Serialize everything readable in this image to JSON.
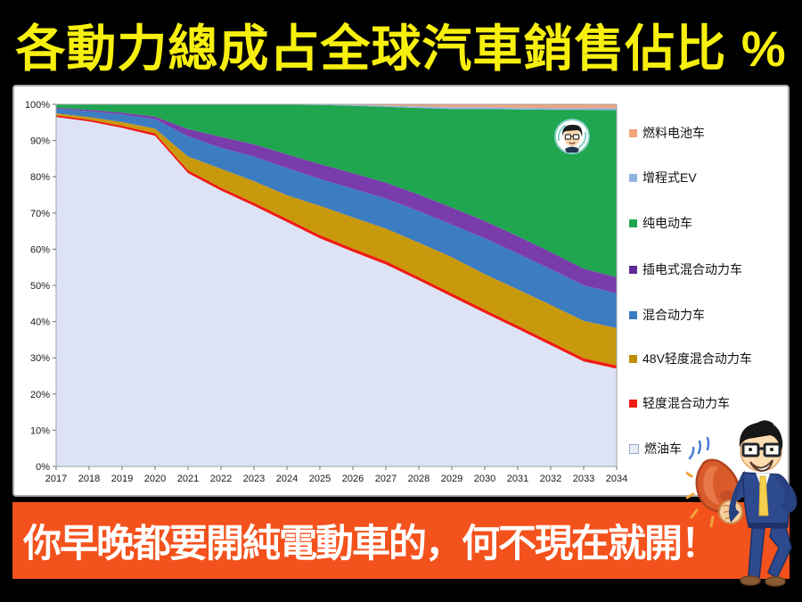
{
  "title": {
    "text": "各動力總成占全球汽車銷售佔比 %"
  },
  "banner": {
    "text": "你早晚都要開純電動車的，何不現在就開！"
  },
  "colors": {
    "page_background": "#000000",
    "title_color": "#F7EF0E",
    "panel_background": "#FFFFFF",
    "banner_background": "#F4521C",
    "highlight_box": "#17A44B"
  },
  "legend": {
    "highlighted_item": "纯电动车",
    "items": [
      {
        "label": "燃料电池车",
        "color": "#F2A57F"
      },
      {
        "label": "增程式EV",
        "color": "#8FB4DE"
      },
      {
        "label": "纯电动车",
        "color": "#1FA64F"
      },
      {
        "label": "插电式混合动力车",
        "color": "#5C2D91"
      },
      {
        "label": "混合动力车",
        "color": "#3C7CC1"
      },
      {
        "label": "48V轻度混合动力车",
        "color": "#BF9000"
      },
      {
        "label": "轻度混合动力车",
        "color": "#EE1C12"
      },
      {
        "label": "燃油车",
        "color": "#E9EDF8",
        "border": "#9AA7C7"
      }
    ]
  },
  "chart_data": {
    "type": "area",
    "stacked": true,
    "stack_order": "bottom-to-top",
    "unit": "%",
    "grid": false,
    "legend_position": "right",
    "x": [
      2017,
      2018,
      2019,
      2020,
      2021,
      2022,
      2023,
      2024,
      2025,
      2026,
      2027,
      2028,
      2029,
      2030,
      2031,
      2032,
      2033,
      2034
    ],
    "ylim": [
      0,
      100
    ],
    "ytick_step": 10,
    "series": [
      {
        "name": "燃油车",
        "key": "ice",
        "color": "#DDE3F4",
        "values": [
          96.5,
          95.3,
          93.5,
          91.3,
          81.0,
          76.2,
          72.0,
          67.5,
          63.0,
          59.3,
          55.8,
          51.4,
          46.9,
          42.4,
          38.0,
          33.5,
          29.0,
          27.0
        ]
      },
      {
        "name": "轻度混合动力车",
        "key": "mild-hybrid",
        "color": "#EE1C12",
        "values": [
          0.5,
          0.5,
          0.6,
          0.7,
          0.8,
          0.8,
          0.8,
          0.9,
          0.9,
          0.9,
          0.9,
          0.9,
          0.9,
          0.9,
          0.9,
          0.9,
          0.9,
          0.9
        ]
      },
      {
        "name": "48V轻度混合动力车",
        "key": "mild-hybrid-48v",
        "color": "#C9990D",
        "values": [
          0.5,
          0.7,
          1.0,
          1.3,
          3.8,
          5.2,
          6.0,
          6.5,
          8.1,
          8.6,
          9.0,
          9.5,
          10.0,
          9.8,
          10.0,
          10.2,
          10.3,
          10.3
        ]
      },
      {
        "name": "混合动力车",
        "key": "hybrid",
        "color": "#3C7CC1",
        "values": [
          1.3,
          1.6,
          2.1,
          2.6,
          5.6,
          5.8,
          6.8,
          7.5,
          7.4,
          7.9,
          8.3,
          8.7,
          9.0,
          9.9,
          9.9,
          9.9,
          9.8,
          9.6
        ]
      },
      {
        "name": "插电式混合动力车",
        "key": "phev",
        "color": "#7A3CAB",
        "values": [
          0.3,
          0.4,
          0.5,
          0.7,
          2.0,
          3.0,
          3.4,
          3.8,
          4.1,
          4.3,
          4.4,
          4.6,
          4.7,
          4.8,
          4.8,
          4.7,
          4.6,
          4.5
        ]
      },
      {
        "name": "纯电动车",
        "key": "bev",
        "color": "#1FA64F",
        "values": [
          0.8,
          1.4,
          2.2,
          3.3,
          6.7,
          8.9,
          10.9,
          13.7,
          16.3,
          18.6,
          20.9,
          23.9,
          27.2,
          30.9,
          35.0,
          39.3,
          43.9,
          46.1
        ]
      },
      {
        "name": "增程式EV",
        "key": "erev",
        "color": "#8FB4DE",
        "values": [
          0.05,
          0.05,
          0.05,
          0.05,
          0.05,
          0.05,
          0.05,
          0.05,
          0.1,
          0.2,
          0.3,
          0.4,
          0.5,
          0.5,
          0.5,
          0.5,
          0.5,
          0.6
        ]
      },
      {
        "name": "燃料电池车",
        "key": "fcv",
        "color": "#F2A57F",
        "values": [
          0.05,
          0.05,
          0.05,
          0.05,
          0.05,
          0.05,
          0.05,
          0.05,
          0.1,
          0.2,
          0.4,
          0.6,
          0.8,
          0.8,
          0.9,
          1.0,
          1.0,
          1.0
        ]
      }
    ]
  }
}
